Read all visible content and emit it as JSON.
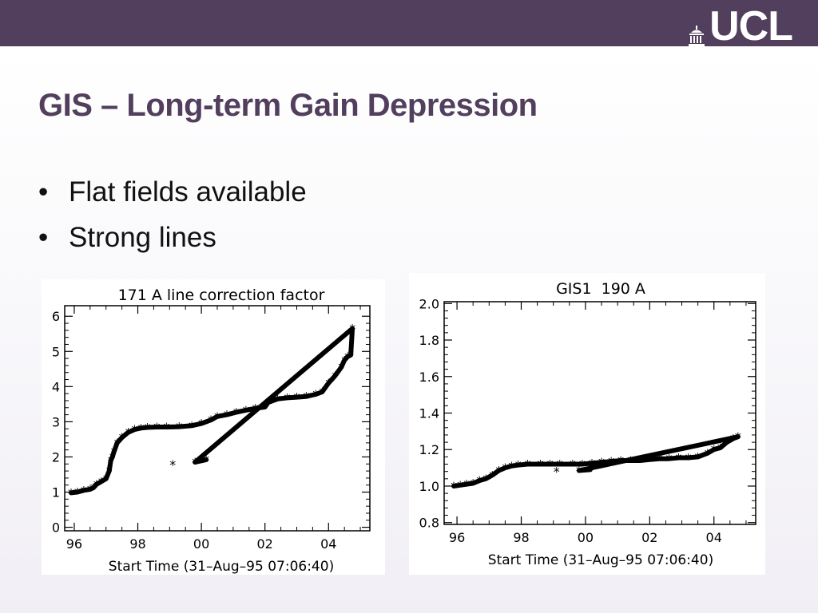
{
  "slide": {
    "logo_text": "UCL",
    "title": "GIS – Long-term Gain Depression",
    "bullets": [
      "Flat fields available",
      "Strong lines"
    ],
    "colors": {
      "brand": "#523f5e",
      "title": "#523f5e"
    }
  },
  "chart_data": [
    {
      "type": "scatter",
      "title": "171 A line correction factor",
      "xlabel": "Start Time (31–Aug–95 07:06:40)",
      "ylabel": "",
      "xlim": [
        1995.7,
        2005.3
      ],
      "ylim": [
        -0.1,
        6.3
      ],
      "xticks": [
        1996,
        1998,
        2000,
        2002,
        2004
      ],
      "xtick_labels": [
        "96",
        "98",
        "00",
        "02",
        "04"
      ],
      "yticks": [
        0,
        1,
        2,
        3,
        4,
        5,
        6
      ],
      "ytick_labels": [
        "0",
        "1",
        "2",
        "3",
        "4",
        "5",
        "6"
      ],
      "marker": "*",
      "grid": false,
      "series": [
        {
          "points": [
            [
              1995.9,
              0.98
            ],
            [
              1996.1,
              1.0
            ],
            [
              1996.3,
              1.05
            ],
            [
              1996.5,
              1.08
            ],
            [
              1996.6,
              1.12
            ],
            [
              1996.7,
              1.22
            ],
            [
              1996.85,
              1.3
            ],
            [
              1997.0,
              1.38
            ],
            [
              1997.1,
              1.6
            ],
            [
              1997.15,
              1.9
            ],
            [
              1997.2,
              2.0
            ],
            [
              1997.25,
              2.15
            ],
            [
              1997.35,
              2.4
            ],
            [
              1997.5,
              2.55
            ],
            [
              1997.7,
              2.7
            ],
            [
              1997.9,
              2.78
            ],
            [
              1998.1,
              2.82
            ],
            [
              1998.3,
              2.84
            ],
            [
              1998.6,
              2.85
            ],
            [
              1998.9,
              2.85
            ],
            [
              1999.3,
              2.86
            ],
            [
              1999.7,
              2.89
            ],
            [
              2000.0,
              2.95
            ],
            [
              2000.3,
              3.05
            ],
            [
              2000.5,
              3.15
            ],
            [
              2000.8,
              3.2
            ],
            [
              2001.1,
              3.27
            ],
            [
              2001.4,
              3.33
            ],
            [
              2001.7,
              3.38
            ],
            [
              2002.0,
              3.42
            ],
            [
              2002.1,
              3.55
            ],
            [
              2002.4,
              3.65
            ],
            [
              2002.7,
              3.68
            ],
            [
              2003.0,
              3.7
            ],
            [
              2003.3,
              3.72
            ],
            [
              2003.6,
              3.78
            ],
            [
              2003.8,
              3.85
            ],
            [
              2004.0,
              4.1
            ],
            [
              2004.2,
              4.3
            ],
            [
              2004.4,
              4.55
            ],
            [
              2004.5,
              4.75
            ],
            [
              2004.6,
              4.85
            ],
            [
              2004.7,
              4.9
            ],
            [
              2004.75,
              5.65
            ],
            [
              1999.1,
              1.78
            ],
            [
              1999.8,
              1.85
            ],
            [
              2000.15,
              1.92
            ]
          ]
        }
      ]
    },
    {
      "type": "scatter",
      "title": "GIS1  190 A",
      "xlabel": "Start Time (31–Aug–95 07:06:40)",
      "ylabel": "",
      "xlim": [
        1995.6,
        2005.3
      ],
      "ylim": [
        0.79,
        2.01
      ],
      "xticks": [
        1996,
        1998,
        2000,
        2002,
        2004
      ],
      "xtick_labels": [
        "96",
        "98",
        "00",
        "02",
        "04"
      ],
      "yticks": [
        0.8,
        1.0,
        1.2,
        1.4,
        1.6,
        1.8,
        2.0
      ],
      "ytick_labels": [
        "0.8",
        "1.0",
        "1.2",
        "1.4",
        "1.6",
        "1.8",
        "2.0"
      ],
      "marker": "*",
      "grid": false,
      "series": [
        {
          "points": [
            [
              1995.9,
              1.0
            ],
            [
              1996.1,
              1.005
            ],
            [
              1996.3,
              1.01
            ],
            [
              1996.5,
              1.015
            ],
            [
              1996.7,
              1.03
            ],
            [
              1996.9,
              1.04
            ],
            [
              1997.1,
              1.06
            ],
            [
              1997.3,
              1.085
            ],
            [
              1997.5,
              1.1
            ],
            [
              1997.7,
              1.11
            ],
            [
              1997.9,
              1.115
            ],
            [
              1998.2,
              1.12
            ],
            [
              1998.6,
              1.12
            ],
            [
              1998.9,
              1.12
            ],
            [
              1999.2,
              1.12
            ],
            [
              1999.6,
              1.12
            ],
            [
              1999.9,
              1.12
            ],
            [
              2000.2,
              1.125
            ],
            [
              2000.5,
              1.13
            ],
            [
              2000.8,
              1.135
            ],
            [
              2001.1,
              1.14
            ],
            [
              2001.4,
              1.14
            ],
            [
              2001.7,
              1.14
            ],
            [
              2002.0,
              1.145
            ],
            [
              2002.3,
              1.15
            ],
            [
              2002.6,
              1.15
            ],
            [
              2002.9,
              1.155
            ],
            [
              2003.2,
              1.155
            ],
            [
              2003.5,
              1.16
            ],
            [
              2003.8,
              1.18
            ],
            [
              2004.0,
              1.2
            ],
            [
              2004.2,
              1.21
            ],
            [
              2004.4,
              1.24
            ],
            [
              2004.6,
              1.26
            ],
            [
              2004.75,
              1.27
            ],
            [
              1999.1,
              1.08
            ],
            [
              1999.8,
              1.085
            ],
            [
              2000.15,
              1.09
            ]
          ]
        }
      ]
    }
  ]
}
